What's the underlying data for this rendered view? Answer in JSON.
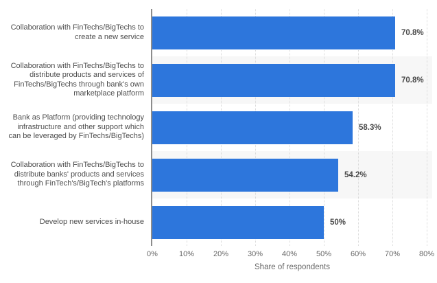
{
  "colors": {
    "bar": "#2d76dc",
    "row_band": "#f7f7f7",
    "gridline": "#d9d9d9",
    "axis_line": "#8c8c8c",
    "category_text": "#4d4d4d",
    "value_text": "#4a4a4a",
    "tick_text": "#666666",
    "background": "#ffffff"
  },
  "chart_data": {
    "type": "bar",
    "orientation": "horizontal",
    "title": "",
    "categories": [
      "Collaboration with FinTechs/BigTechs to\ncreate a new service",
      "Collaboration with FinTechs/BigTechs to\ndistribute products and services of\nFinTechs/BigTechs through bank's own\nmarketplace platform",
      "Bank as Platform (providing technology\ninfrastructure and other support which\ncan be leveraged by FinTechs/BigTechs)",
      "Collaboration with FinTechs/BigTechs to\ndistribute banks' products and services\nthrough FinTech's/BigTech's platforms",
      "Develop new services in-house"
    ],
    "values": [
      70.8,
      70.8,
      58.3,
      54.2,
      50
    ],
    "value_labels": [
      "70.8%",
      "70.8%",
      "58.3%",
      "54.2%",
      "50%"
    ],
    "x_ticks": [
      "0%",
      "10%",
      "20%",
      "30%",
      "40%",
      "50%",
      "60%",
      "70%",
      "80%"
    ],
    "x_tick_values": [
      0,
      10,
      20,
      30,
      40,
      50,
      60,
      70,
      80
    ],
    "xlim": [
      0,
      80
    ],
    "xlabel": "Share of respondents",
    "ylabel": "",
    "grid": "vertical-dotted",
    "legend": "none",
    "row_shading": "alternate"
  }
}
